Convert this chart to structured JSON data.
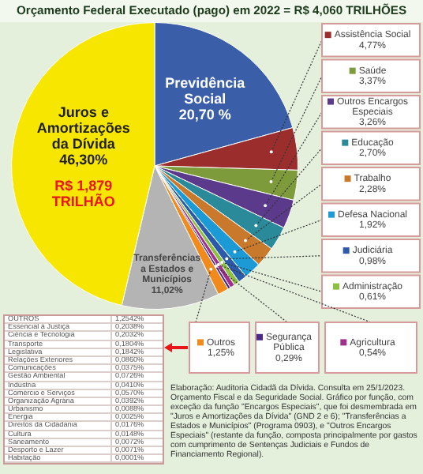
{
  "chart_data": [
    {
      "type": "pie",
      "title": "Orçamento Federal Executado (pago) em 2022 = R$ 4,060 TRILHÕES",
      "categories": [
        "Previdência Social",
        "Assistência Social",
        "Saúde",
        "Outros Encargos Especiais",
        "Educação",
        "Trabalho",
        "Defesa Nacional",
        "Judiciária",
        "Administração",
        "Agricultura",
        "Segurança Pública",
        "Outros",
        "Transferências a Estados e Municípios",
        "Juros e Amortizações da Dívida"
      ],
      "values": [
        20.7,
        4.77,
        3.37,
        3.26,
        2.7,
        2.28,
        1.92,
        0.98,
        0.61,
        0.54,
        0.29,
        1.25,
        11.02,
        46.3
      ],
      "colors": [
        "#3a5fa8",
        "#9b2d2d",
        "#7d9b3a",
        "#5b3a8c",
        "#2b8a99",
        "#c8792b",
        "#1c9ad6",
        "#2c5aa8",
        "#8cc043",
        "#a0308c",
        "#4a2a8a",
        "#f08a1c",
        "#b4b4b4",
        "#f7e600"
      ],
      "legend": "right",
      "value_labels": [
        "20,70 %",
        "4,77%",
        "3,37%",
        "3,26%",
        "2,70%",
        "2,28%",
        "1,92%",
        "0,98%",
        "0,61%",
        "0,54%",
        "0,29%",
        "1,25%",
        "11,02%",
        "46,30%"
      ],
      "annotations": [
        {
          "text": "R$ 1,879 TRILHÃO",
          "x": "Juros e Amortizações da Dívida"
        },
        "Elaboração: Auditoria Cidadã da Dívida. Consulta em 25/1/2023. Orçamento Fiscal e da Seguridade Social. Gráfico por função, com exceção da função \"Encargos Especiais\", que foi desmembrada em \"Juros e Amortizações da Dívida\" (GND 2 e 6); \"Transferências a Estados e Municípios\" (Programa 0903), e \"Outros Encargos Especiais\" (restante da função, composta principalmente por gastos com cumprimento de Sentenças Judiciais e Fundos de Financiamento Regional)."
      ]
    },
    {
      "type": "other",
      "categories": [
        "OUTROS",
        "Essencial à Justiça",
        "Ciência e Tecnologia",
        "Transporte",
        "Legislativa",
        "Relações Exteriores",
        "Comunicações",
        "Gestão Ambiental",
        "Indústria",
        "Comércio e Serviços",
        "Organização Agrária",
        "Urbanismo",
        "Energia",
        "Direitos da Cidadania",
        "Cultura",
        "Saneamento",
        "Desporto e Lazer",
        "Habitação"
      ],
      "value_labels": [
        "1,2542%",
        "0,2038%",
        "0,2032%",
        "0,1804%",
        "0,1842%",
        "0,0860%",
        "0,0375%",
        "0,0726%",
        "0,0410%",
        "0,0570%",
        "0,0392%",
        "0,0088%",
        "0,0025%",
        "0,0176%",
        "0,0148%",
        "0,0072%",
        "0,0071%",
        "0,0001%"
      ]
    }
  ]
}
